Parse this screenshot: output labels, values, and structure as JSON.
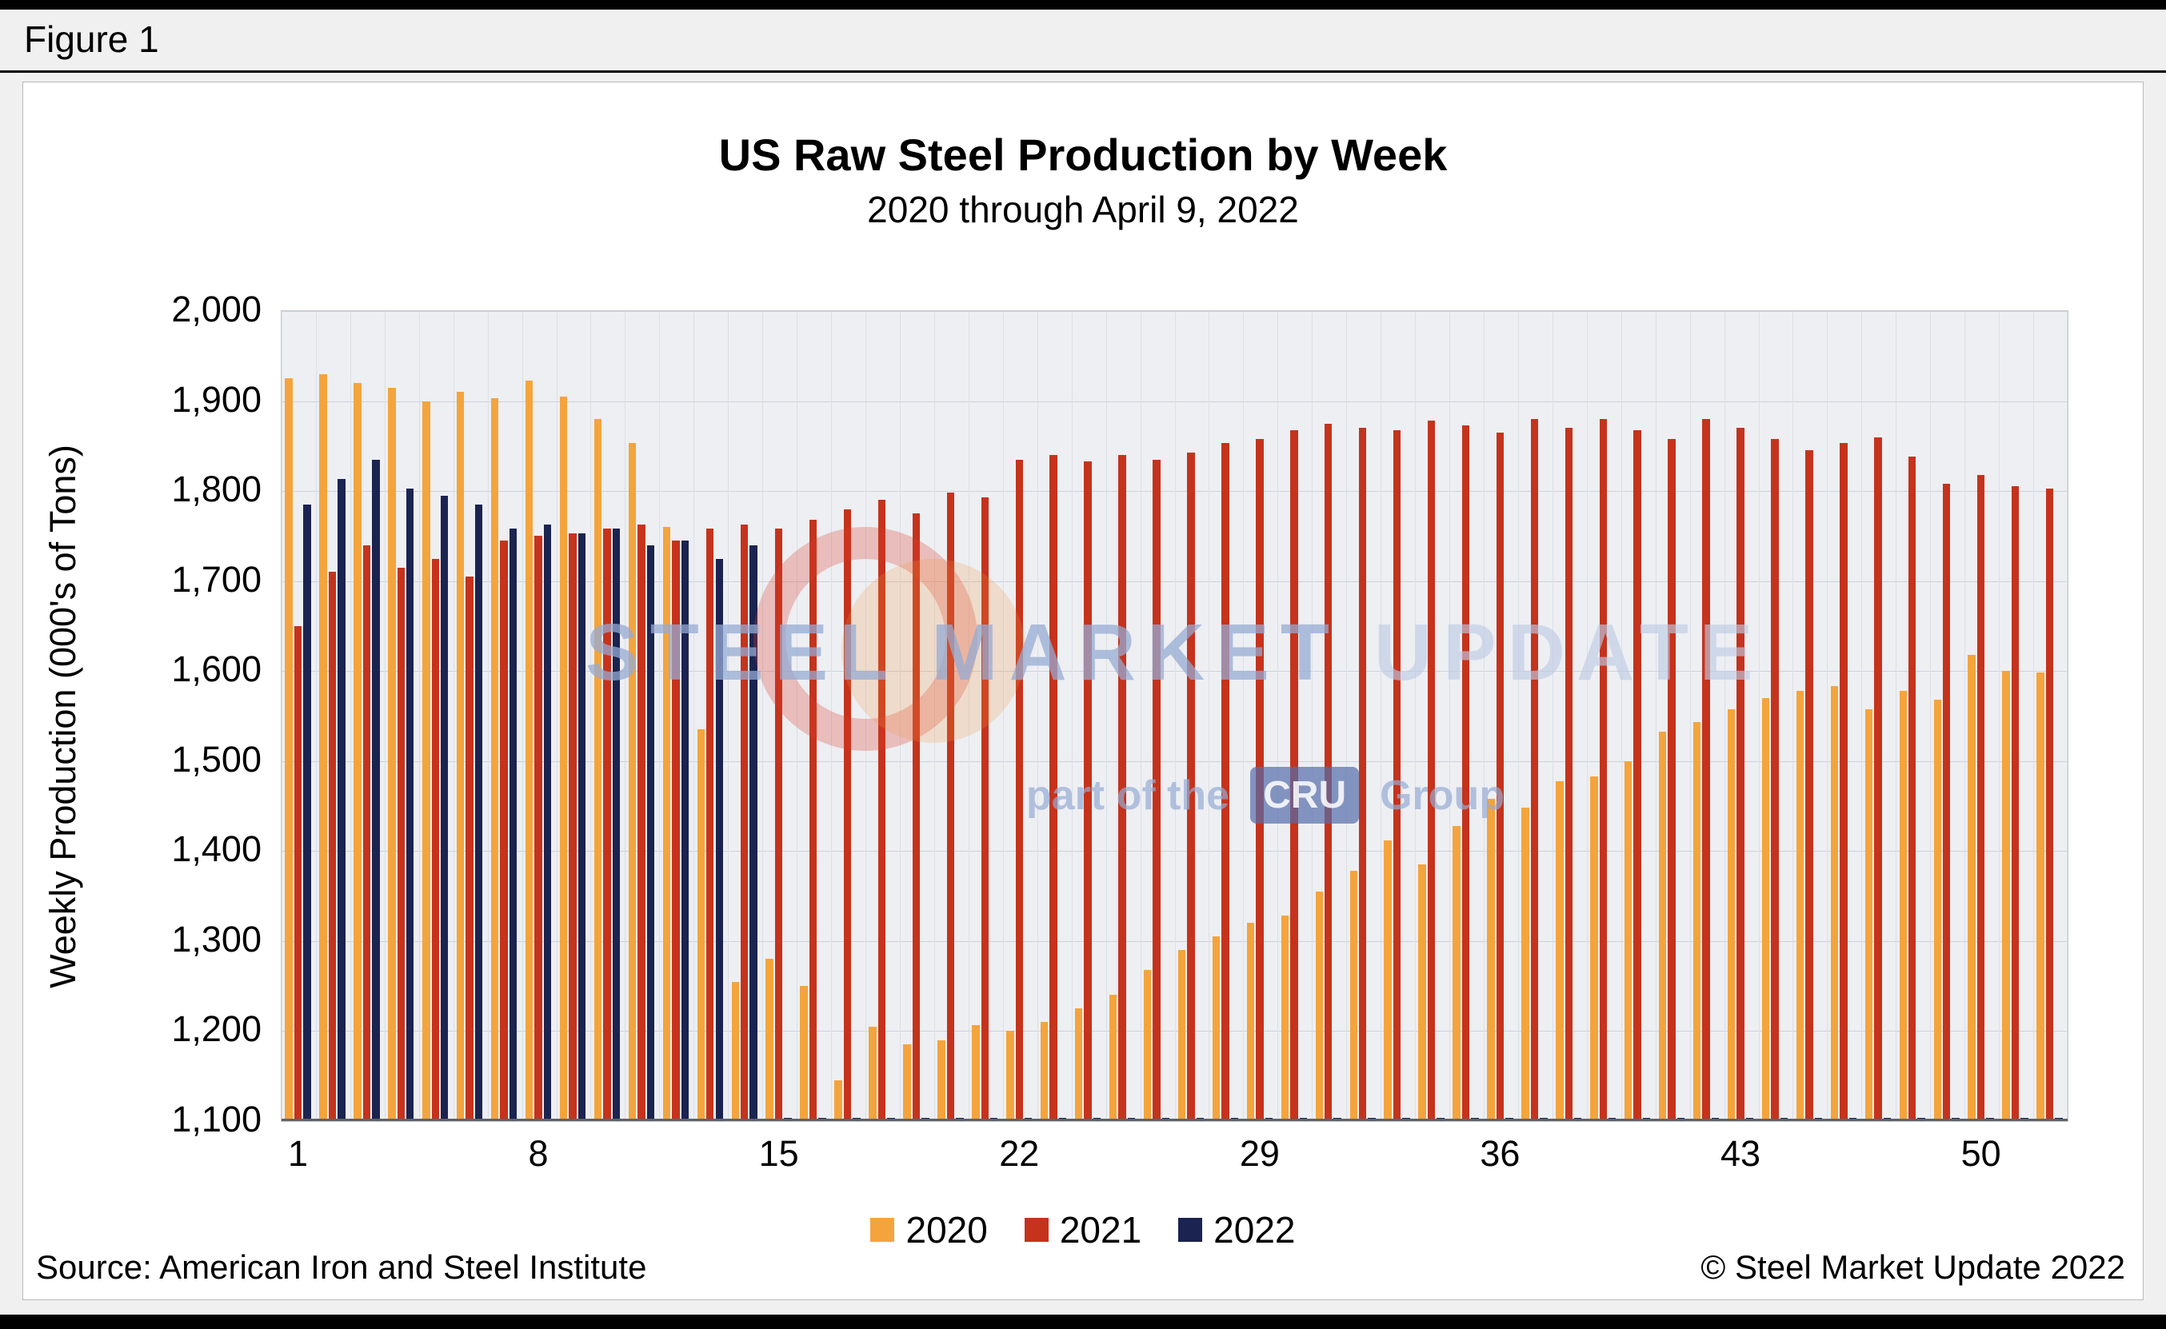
{
  "figure_label": "Figure 1",
  "source": "Source: American Iron and Steel Institute",
  "copyright": "© Steel Market Update 2022",
  "watermark": {
    "steel_market": "STEEL MARKET",
    "update": " UPDATE",
    "part_of_the": "part of the",
    "cru": "CRU",
    "group": "Group"
  },
  "chart_data": {
    "type": "bar",
    "title": "US Raw Steel Production by Week",
    "subtitle": "2020 through April 9, 2022",
    "xlabel": "",
    "ylabel": "Weekly Production (000's of Tons)",
    "ylim": [
      1100,
      2000
    ],
    "ytick_step": 100,
    "grid": true,
    "legend_position": "bottom",
    "x": [
      1,
      2,
      3,
      4,
      5,
      6,
      7,
      8,
      9,
      10,
      11,
      12,
      13,
      14,
      15,
      16,
      17,
      18,
      19,
      20,
      21,
      22,
      23,
      24,
      25,
      26,
      27,
      28,
      29,
      30,
      31,
      32,
      33,
      34,
      35,
      36,
      37,
      38,
      39,
      40,
      41,
      42,
      43,
      44,
      45,
      46,
      47,
      48,
      49,
      50,
      51,
      52
    ],
    "xticks": [
      1,
      8,
      15,
      22,
      29,
      36,
      43,
      50
    ],
    "series": [
      {
        "name": "2020",
        "color": "#F4A43C",
        "values": [
          1925,
          1930,
          1920,
          1915,
          1900,
          1910,
          1903,
          1923,
          1905,
          1880,
          1853,
          1760,
          1535,
          1255,
          1280,
          1250,
          1145,
          1205,
          1185,
          1190,
          1207,
          1200,
          1210,
          1225,
          1240,
          1268,
          1290,
          1305,
          1320,
          1328,
          1355,
          1378,
          1412,
          1385,
          1428,
          1458,
          1448,
          1478,
          1483,
          1500,
          1533,
          1543,
          1558,
          1570,
          1578,
          1583,
          1558,
          1578,
          1568,
          1618,
          1600,
          1598
        ]
      },
      {
        "name": "2021",
        "color": "#C5331D",
        "values": [
          1650,
          1710,
          1740,
          1715,
          1725,
          1705,
          1745,
          1750,
          1753,
          1758,
          1763,
          1745,
          1758,
          1763,
          1758,
          1768,
          1780,
          1790,
          1775,
          1798,
          1793,
          1835,
          1840,
          1833,
          1840,
          1835,
          1843,
          1853,
          1858,
          1868,
          1875,
          1870,
          1868,
          1878,
          1873,
          1865,
          1880,
          1870,
          1880,
          1868,
          1858,
          1880,
          1870,
          1858,
          1845,
          1853,
          1860,
          1838,
          1808,
          1818,
          1805,
          1803
        ]
      },
      {
        "name": "2022",
        "color": "#1B2350",
        "values": [
          1785,
          1813,
          1835,
          1803,
          1795,
          1785,
          1758,
          1763,
          1753,
          1758,
          1740,
          1745,
          1725,
          1740,
          null,
          null,
          null,
          null,
          null,
          null,
          null,
          null,
          null,
          null,
          null,
          null,
          null,
          null,
          null,
          null,
          null,
          null,
          null,
          null,
          null,
          null,
          null,
          null,
          null,
          null,
          null,
          null,
          null,
          null,
          null,
          null,
          null,
          null,
          null,
          null,
          null,
          null
        ]
      }
    ]
  }
}
